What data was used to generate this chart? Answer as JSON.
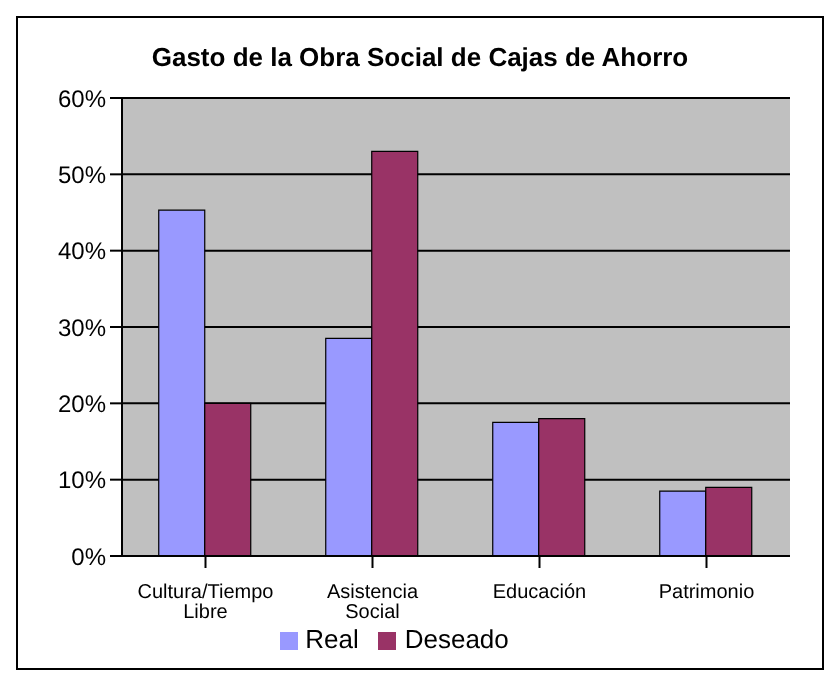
{
  "chart_data": {
    "type": "bar",
    "title": "Gasto de la Obra Social de Cajas de Ahorro",
    "categories": [
      "Cultura/Tiempo Libre",
      "Asistencia Social",
      "Educación",
      "Patrimonio"
    ],
    "series": [
      {
        "name": "Real",
        "color": "#9999ff",
        "values": [
          45.3,
          28.5,
          17.5,
          8.5
        ]
      },
      {
        "name": "Deseado",
        "color": "#993366",
        "values": [
          20,
          53,
          18,
          9
        ]
      }
    ],
    "ylim": [
      0,
      60
    ],
    "yticks": [
      {
        "value": 0,
        "label": "0%"
      },
      {
        "value": 10,
        "label": "10%"
      },
      {
        "value": 20,
        "label": "20%"
      },
      {
        "value": 30,
        "label": "30%"
      },
      {
        "value": 40,
        "label": "40%"
      },
      {
        "value": 50,
        "label": "50%"
      },
      {
        "value": 60,
        "label": "60%"
      }
    ],
    "grid": "y",
    "legend": "bottom"
  }
}
